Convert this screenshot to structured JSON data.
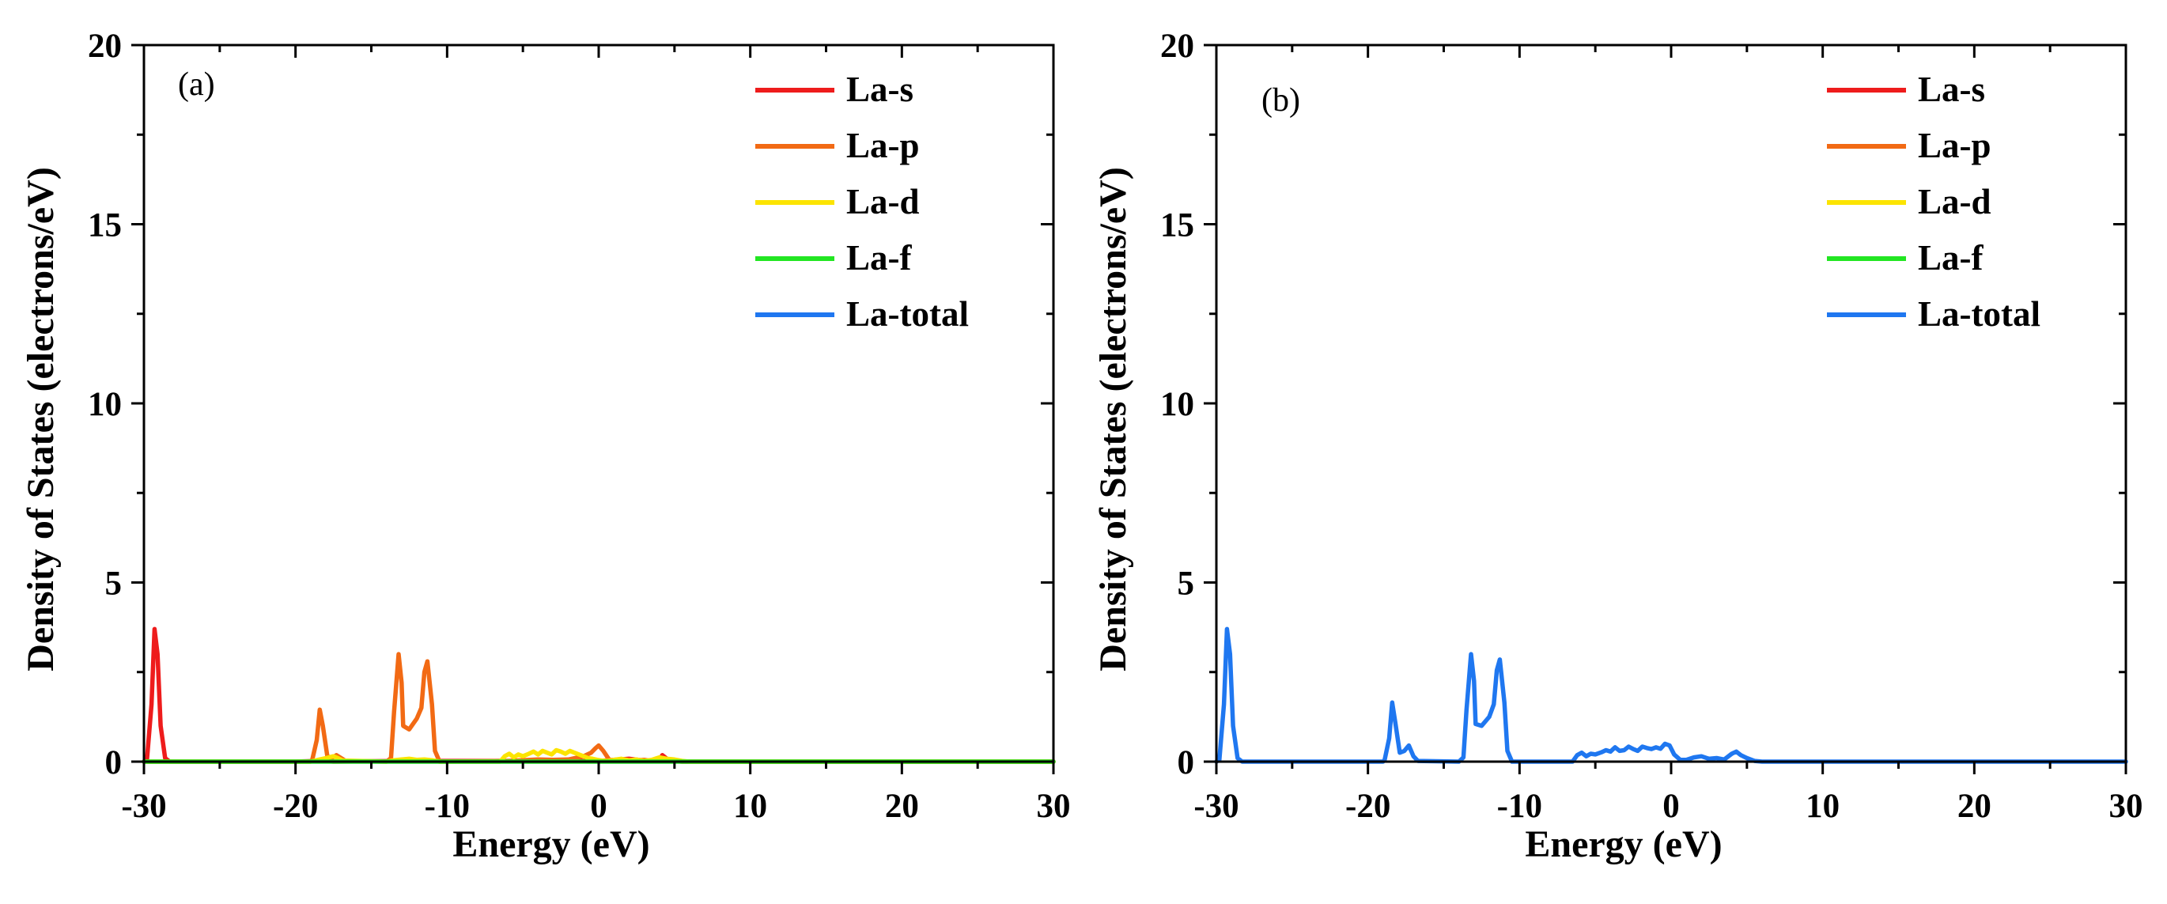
{
  "chart_data": [
    {
      "type": "line",
      "panel_label": "(a)",
      "xlabel": "Energy (eV)",
      "ylabel": "Density of States (electrons/eV)",
      "xlim": [
        -30,
        30
      ],
      "ylim": [
        0,
        20
      ],
      "xticks": [
        -30,
        -20,
        -10,
        0,
        10,
        20,
        30
      ],
      "yticks": [
        0,
        5,
        10,
        15,
        20
      ],
      "legend_position": "top-right",
      "legend": [
        "La-s",
        "La-p",
        "La-d",
        "La-f",
        "La-total"
      ],
      "series": [
        {
          "name": "La-total",
          "color": "#1f77f0",
          "x": [],
          "y": []
        },
        {
          "name": "La-s",
          "color": "#ee1c1c",
          "x": [
            -30,
            -29.8,
            -29.5,
            -29.3,
            -29.1,
            -28.9,
            -28.6,
            -28.3,
            -20,
            -18.5,
            -18,
            -17.5,
            -13,
            -12,
            -11,
            -5,
            -3,
            -1,
            0,
            1,
            2,
            3,
            4,
            4.2,
            4.5,
            4.9,
            5.5,
            30
          ],
          "y": [
            0,
            0.05,
            1.6,
            3.7,
            3.0,
            1.0,
            0.1,
            0,
            0,
            0.02,
            0.02,
            0,
            0.02,
            0.02,
            0.02,
            0.02,
            0.03,
            0.02,
            0.02,
            0.05,
            0.08,
            0.03,
            0.05,
            0.18,
            0.08,
            0.02,
            0,
            0
          ]
        },
        {
          "name": "La-p",
          "color": "#f26a14",
          "x": [
            -30,
            -19,
            -18.9,
            -18.6,
            -18.4,
            -18.2,
            -17.9,
            -17.6,
            -17.3,
            -17.0,
            -16.7,
            -14,
            -13.7,
            -13.5,
            -13.2,
            -13.0,
            -12.9,
            -12.5,
            -12.0,
            -11.7,
            -11.5,
            -11.3,
            -11.0,
            -10.8,
            -10.5,
            -6,
            -5,
            -4,
            -3,
            -2,
            -1,
            -0.5,
            -0.2,
            0,
            0.3,
            0.7,
            1,
            2,
            3,
            3.5,
            4,
            4.3,
            4.6,
            5,
            5.5,
            30
          ],
          "y": [
            0,
            0,
            0.05,
            0.6,
            1.45,
            1.0,
            0.15,
            0.1,
            0.18,
            0.1,
            0.02,
            0,
            0.1,
            1.4,
            3.0,
            2.2,
            1.0,
            0.9,
            1.2,
            1.5,
            2.5,
            2.8,
            1.6,
            0.3,
            0,
            0.02,
            0.04,
            0.06,
            0.05,
            0.06,
            0.15,
            0.25,
            0.38,
            0.45,
            0.3,
            0.05,
            0.03,
            0.02,
            0.05,
            0.02,
            0.04,
            0.08,
            0.03,
            0.02,
            0,
            0
          ]
        },
        {
          "name": "La-d",
          "color": "#fce400",
          "x": [
            -30,
            -19,
            -18.5,
            -18.0,
            -17.5,
            -17.2,
            -16.9,
            -14,
            -13.5,
            -13.0,
            -12.5,
            -12.0,
            -11.5,
            -11.0,
            -10.5,
            -6.5,
            -6.2,
            -5.9,
            -5.6,
            -5.3,
            -5.0,
            -4.6,
            -4.3,
            -4.0,
            -3.7,
            -3.4,
            -3.1,
            -2.8,
            -2.5,
            -2.2,
            -1.9,
            -1.6,
            -1.3,
            -1.0,
            -0.7,
            -0.4,
            -0.1,
            0.2,
            0.6,
            1,
            1.5,
            2,
            2.5,
            3,
            3.5,
            4,
            4.5,
            5,
            5.5,
            6,
            30
          ],
          "y": [
            0,
            0,
            0.05,
            0.1,
            0.15,
            0.1,
            0.03,
            0,
            0.04,
            0.06,
            0.08,
            0.05,
            0.06,
            0.04,
            0,
            0,
            0.15,
            0.22,
            0.12,
            0.2,
            0.15,
            0.22,
            0.28,
            0.2,
            0.3,
            0.25,
            0.2,
            0.32,
            0.28,
            0.22,
            0.3,
            0.25,
            0.2,
            0.15,
            0.1,
            0.08,
            0.05,
            0.03,
            0.02,
            0.05,
            0.08,
            0.04,
            0.06,
            0.02,
            0.05,
            0.12,
            0.08,
            0.06,
            0.02,
            0,
            0
          ]
        },
        {
          "name": "La-f",
          "color": "#22e622",
          "x": [
            -30,
            30
          ],
          "y": [
            0,
            0
          ]
        }
      ]
    },
    {
      "type": "line",
      "panel_label": "(b)",
      "xlabel": "Energy (eV)",
      "ylabel": "Density of States (electrons/eV)",
      "xlim": [
        -30,
        30
      ],
      "ylim": [
        0,
        20
      ],
      "xticks": [
        -30,
        -20,
        -10,
        0,
        10,
        20,
        30
      ],
      "yticks": [
        0,
        5,
        10,
        15,
        20
      ],
      "legend_position": "top-right",
      "legend": [
        "La-s",
        "La-p",
        "La-d",
        "La-f",
        "La-total"
      ],
      "series": [
        {
          "name": "La-s",
          "color": "#ee1c1c",
          "x": [],
          "y": []
        },
        {
          "name": "La-p",
          "color": "#f26a14",
          "x": [],
          "y": []
        },
        {
          "name": "La-d",
          "color": "#fce400",
          "x": [],
          "y": []
        },
        {
          "name": "La-f",
          "color": "#22e622",
          "x": [],
          "y": []
        },
        {
          "name": "La-total",
          "color": "#1f77f0",
          "x": [
            -30,
            -29.8,
            -29.5,
            -29.3,
            -29.1,
            -28.9,
            -28.6,
            -28.3,
            -19,
            -18.9,
            -18.6,
            -18.4,
            -18.2,
            -17.9,
            -17.6,
            -17.3,
            -17.0,
            -16.7,
            -14,
            -13.7,
            -13.5,
            -13.2,
            -13.0,
            -12.9,
            -12.5,
            -12.0,
            -11.7,
            -11.5,
            -11.3,
            -11.0,
            -10.8,
            -10.5,
            -6.5,
            -6.2,
            -5.9,
            -5.6,
            -5.3,
            -5.0,
            -4.6,
            -4.3,
            -4.0,
            -3.7,
            -3.4,
            -3.1,
            -2.8,
            -2.5,
            -2.2,
            -1.9,
            -1.6,
            -1.3,
            -1.0,
            -0.7,
            -0.4,
            -0.1,
            0.2,
            0.6,
            1,
            1.5,
            2,
            2.5,
            3,
            3.5,
            4,
            4.3,
            4.6,
            5,
            5.5,
            6,
            30
          ],
          "y": [
            0,
            0.05,
            1.6,
            3.7,
            3.0,
            1.0,
            0.1,
            0,
            0,
            0.05,
            0.65,
            1.65,
            1.1,
            0.25,
            0.3,
            0.45,
            0.15,
            0.02,
            0,
            0.12,
            1.45,
            3.0,
            2.25,
            1.05,
            1.0,
            1.25,
            1.6,
            2.55,
            2.85,
            1.65,
            0.3,
            0,
            0,
            0.18,
            0.25,
            0.15,
            0.22,
            0.2,
            0.26,
            0.32,
            0.28,
            0.4,
            0.3,
            0.32,
            0.42,
            0.35,
            0.3,
            0.42,
            0.38,
            0.35,
            0.4,
            0.36,
            0.5,
            0.45,
            0.2,
            0.05,
            0.05,
            0.12,
            0.15,
            0.08,
            0.1,
            0.06,
            0.22,
            0.28,
            0.18,
            0.1,
            0.02,
            0,
            0
          ]
        }
      ]
    }
  ]
}
